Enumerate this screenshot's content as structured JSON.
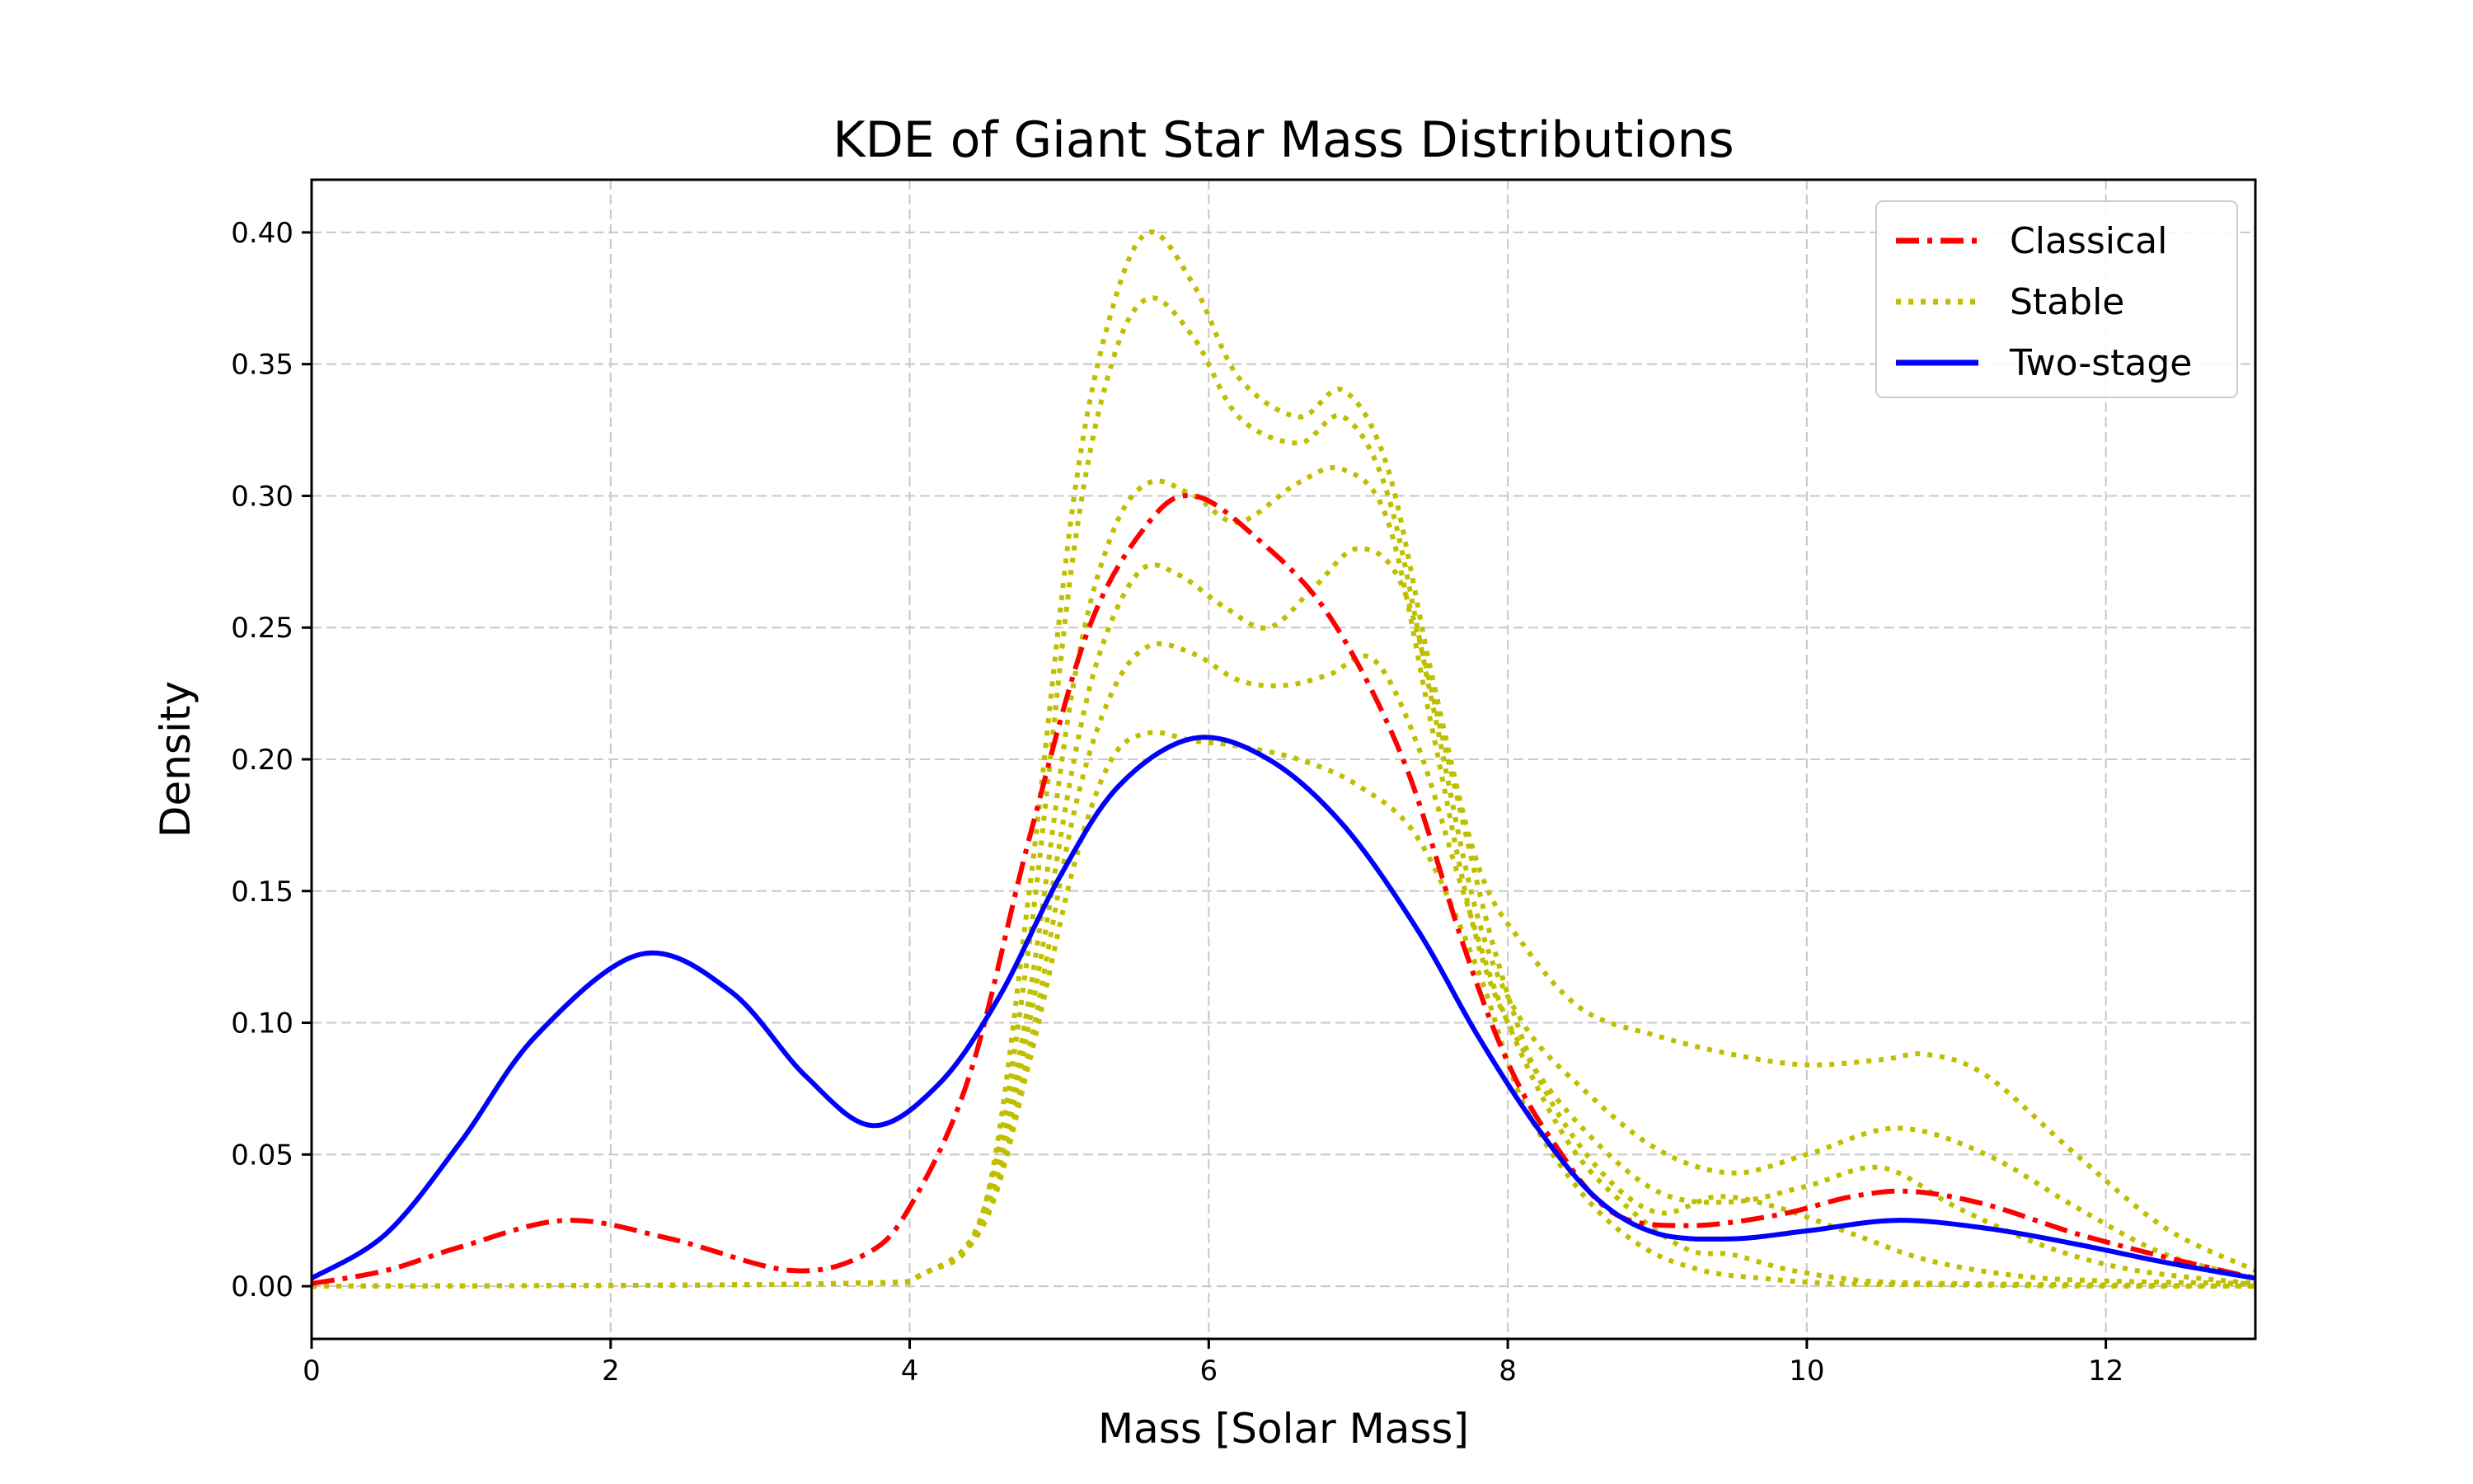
{
  "chart_data": {
    "type": "line",
    "title": "KDE of Giant Star Mass Distributions",
    "xlabel": "Mass [Solar Mass]",
    "ylabel": "Density",
    "xlim": [
      0,
      13
    ],
    "ylim": [
      -0.02,
      0.42
    ],
    "grid": true,
    "legend_position": "top-right",
    "xticks": [
      0,
      2,
      4,
      6,
      8,
      10,
      12
    ],
    "xtick_labels": [
      "0",
      "2",
      "4",
      "6",
      "8",
      "10",
      "12"
    ],
    "yticks": [
      0.0,
      0.05,
      0.1,
      0.15,
      0.2,
      0.25,
      0.3,
      0.35,
      0.4
    ],
    "ytick_labels": [
      "0.00",
      "0.05",
      "0.10",
      "0.15",
      "0.20",
      "0.25",
      "0.30",
      "0.35",
      "0.40"
    ],
    "legend": [
      {
        "label": "Classical",
        "color": "#ff0000",
        "style": "dashdot"
      },
      {
        "label": "Stable",
        "color": "#bfbf00",
        "style": "dotted"
      },
      {
        "label": "Two-stage",
        "color": "#0000ff",
        "style": "solid"
      }
    ],
    "series": [
      {
        "name": "Classical",
        "color": "#ff0000",
        "style": "dashdot",
        "x": [
          0,
          0.5,
          1.0,
          1.7,
          2.4,
          3.2,
          3.7,
          4.0,
          4.4,
          4.8,
          5.2,
          5.6,
          5.9,
          6.3,
          6.8,
          7.3,
          7.7,
          8.0,
          8.3,
          8.7,
          9.2,
          9.8,
          10.3,
          10.7,
          11.2,
          11.8,
          12.4,
          13.0
        ],
        "y": [
          0.001,
          0.006,
          0.015,
          0.025,
          0.018,
          0.006,
          0.012,
          0.03,
          0.08,
          0.17,
          0.25,
          0.29,
          0.3,
          0.285,
          0.255,
          0.2,
          0.13,
          0.085,
          0.055,
          0.028,
          0.023,
          0.027,
          0.034,
          0.036,
          0.031,
          0.02,
          0.011,
          0.003
        ]
      },
      {
        "name": "Two-stage",
        "color": "#0000ff",
        "style": "solid",
        "x": [
          0,
          0.5,
          1.0,
          1.5,
          2.2,
          2.8,
          3.3,
          3.75,
          4.2,
          4.6,
          5.0,
          5.4,
          5.9,
          6.4,
          6.9,
          7.4,
          7.8,
          8.2,
          8.6,
          9.0,
          9.5,
          10.0,
          10.6,
          11.2,
          11.8,
          12.4,
          13.0
        ],
        "y": [
          0.003,
          0.02,
          0.055,
          0.095,
          0.126,
          0.112,
          0.08,
          0.061,
          0.077,
          0.11,
          0.155,
          0.19,
          0.208,
          0.2,
          0.175,
          0.135,
          0.095,
          0.06,
          0.033,
          0.02,
          0.018,
          0.021,
          0.025,
          0.022,
          0.016,
          0.009,
          0.003
        ]
      },
      {
        "name": "Stable",
        "color": "#bfbf00",
        "style": "dotted",
        "x": [
          0,
          3.5,
          4.1,
          4.5,
          4.8,
          5.1,
          5.35,
          5.6,
          5.9,
          6.2,
          6.6,
          6.9,
          7.2,
          7.5,
          7.8,
          8.1,
          8.5,
          9.0,
          9.5,
          10.0,
          10.5,
          10.8,
          11.2,
          11.8,
          12.4,
          13.0
        ],
        "y": [
          0,
          0.001,
          0.005,
          0.03,
          0.15,
          0.3,
          0.37,
          0.4,
          0.38,
          0.345,
          0.33,
          0.34,
          0.31,
          0.23,
          0.16,
          0.13,
          0.105,
          0.095,
          0.088,
          0.084,
          0.086,
          0.088,
          0.08,
          0.05,
          0.022,
          0.006
        ]
      },
      {
        "name": "Stable",
        "color": "#bfbf00",
        "style": "dotted",
        "x": [
          0,
          3.5,
          4.1,
          4.5,
          4.8,
          5.1,
          5.35,
          5.6,
          5.9,
          6.2,
          6.6,
          6.9,
          7.2,
          7.5,
          7.8,
          8.1,
          8.5,
          9.0,
          9.5,
          10.0,
          10.6,
          11.2,
          11.8,
          12.4,
          13.0
        ],
        "y": [
          0,
          0.001,
          0.005,
          0.03,
          0.13,
          0.28,
          0.35,
          0.375,
          0.36,
          0.33,
          0.32,
          0.33,
          0.3,
          0.22,
          0.14,
          0.1,
          0.075,
          0.052,
          0.043,
          0.05,
          0.06,
          0.05,
          0.03,
          0.012,
          0.003
        ]
      },
      {
        "name": "Stable",
        "color": "#bfbf00",
        "style": "dotted",
        "x": [
          0,
          3.5,
          4.1,
          4.5,
          4.8,
          5.1,
          5.35,
          5.6,
          5.9,
          6.2,
          6.6,
          6.9,
          7.2,
          7.5,
          7.8,
          8.1,
          8.5,
          9.0,
          9.5,
          10.0,
          10.5,
          11.0,
          11.6,
          12.2,
          13.0
        ],
        "y": [
          0,
          0.001,
          0.005,
          0.028,
          0.11,
          0.23,
          0.285,
          0.305,
          0.3,
          0.29,
          0.305,
          0.31,
          0.29,
          0.21,
          0.13,
          0.09,
          0.06,
          0.036,
          0.032,
          0.038,
          0.045,
          0.03,
          0.015,
          0.006,
          0.001
        ]
      },
      {
        "name": "Stable",
        "color": "#bfbf00",
        "style": "dotted",
        "x": [
          0,
          3.5,
          4.1,
          4.5,
          4.8,
          5.1,
          5.3,
          5.55,
          5.8,
          6.1,
          6.4,
          6.7,
          7.0,
          7.3,
          7.6,
          7.9,
          8.2,
          8.6,
          9.0,
          9.4,
          9.8,
          10.3,
          10.8,
          11.4,
          12.0,
          13.0
        ],
        "y": [
          0,
          0.001,
          0.005,
          0.027,
          0.1,
          0.2,
          0.245,
          0.272,
          0.27,
          0.258,
          0.25,
          0.265,
          0.28,
          0.265,
          0.2,
          0.13,
          0.08,
          0.045,
          0.028,
          0.034,
          0.03,
          0.02,
          0.01,
          0.004,
          0.002,
          0.001
        ]
      },
      {
        "name": "Stable",
        "color": "#bfbf00",
        "style": "dotted",
        "x": [
          0,
          3.5,
          4.1,
          4.5,
          4.8,
          5.1,
          5.35,
          5.6,
          5.9,
          6.2,
          6.5,
          6.8,
          7.1,
          7.4,
          7.7,
          8.0,
          8.4,
          8.8,
          9.2,
          9.5,
          9.9,
          10.4,
          11.0,
          12.0,
          13.0
        ],
        "y": [
          0,
          0.001,
          0.005,
          0.025,
          0.09,
          0.18,
          0.225,
          0.243,
          0.24,
          0.23,
          0.228,
          0.232,
          0.238,
          0.205,
          0.15,
          0.1,
          0.055,
          0.03,
          0.014,
          0.012,
          0.006,
          0.002,
          0.001,
          0.0005,
          0
        ]
      },
      {
        "name": "Stable",
        "color": "#bfbf00",
        "style": "dotted",
        "x": [
          0,
          3.5,
          4.1,
          4.5,
          4.8,
          5.1,
          5.35,
          5.6,
          5.9,
          6.2,
          6.6,
          7.0,
          7.4,
          7.8,
          8.1,
          8.5,
          8.9,
          9.3,
          9.7,
          10.2,
          11.0,
          12.0,
          13.0
        ],
        "y": [
          0,
          0.001,
          0.005,
          0.024,
          0.085,
          0.16,
          0.2,
          0.21,
          0.207,
          0.205,
          0.2,
          0.19,
          0.17,
          0.12,
          0.07,
          0.035,
          0.015,
          0.006,
          0.003,
          0.001,
          0.0005,
          0,
          0
        ]
      }
    ]
  }
}
